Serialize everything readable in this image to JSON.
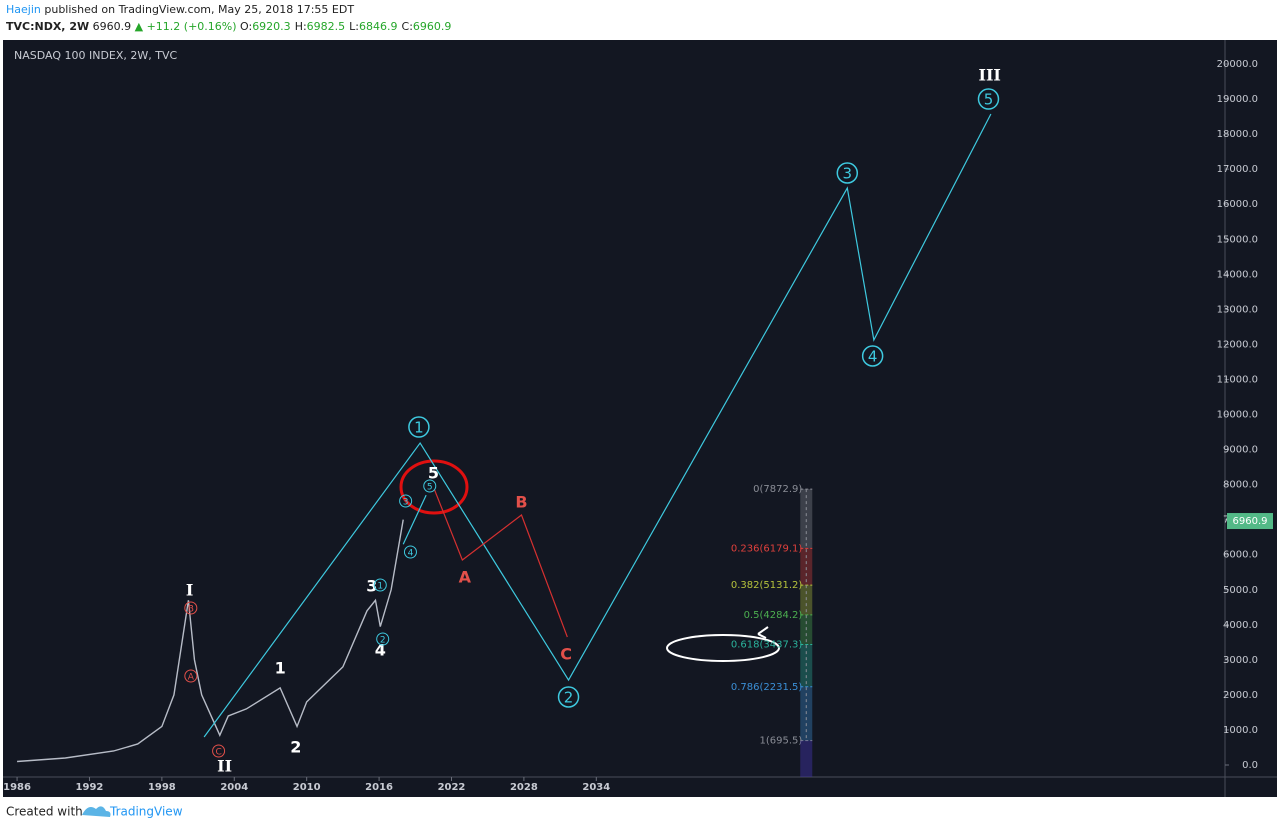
{
  "header": {
    "author": "Haejin",
    "published": "published on TradingView.com, May 25, 2018 17:55 EDT",
    "symbol": "TVC:NDX, 2W",
    "price": "6960.9",
    "change": "▲ +11.2 (+0.16%)",
    "ohlc": [
      {
        "label": "O:",
        "value": "6920.3"
      },
      {
        "label": "H:",
        "value": "6982.5"
      },
      {
        "label": "L:",
        "value": "6846.9"
      },
      {
        "label": "C:",
        "value": "6960.9"
      }
    ]
  },
  "footer": {
    "text": "Created with",
    "brand": "TradingView"
  },
  "chart_data": {
    "type": "line",
    "title": "NASDAQ 100 INDEX, 2W, TVC",
    "xlim": [
      1985,
      2086.1
    ],
    "xticks": [
      1986,
      1992,
      1998,
      2004,
      2010,
      2016,
      2022,
      2028,
      2034
    ],
    "ylim": [
      -342,
      20628
    ],
    "yticks": [
      {
        "value": 0,
        "label": "0.0"
      },
      {
        "value": 1000,
        "label": "1000.0"
      },
      {
        "value": 2000,
        "label": "2000.0"
      },
      {
        "value": 3000,
        "label": "3000.0"
      },
      {
        "value": 4000,
        "label": "4000.0"
      },
      {
        "value": 5000,
        "label": "5000.0"
      },
      {
        "value": 6000,
        "label": "6000.0"
      },
      {
        "value": 7000,
        "label": "7000.0"
      },
      {
        "value": 8000,
        "label": "8000.0"
      },
      {
        "value": 9000,
        "label": "9000.0"
      },
      {
        "value": 10000,
        "label": "10000.0"
      },
      {
        "value": 11000,
        "label": "11000.0"
      },
      {
        "value": 12000,
        "label": "12000.0"
      },
      {
        "value": 13000,
        "label": "13000.0"
      },
      {
        "value": 14000,
        "label": "14000.0"
      },
      {
        "value": 15000,
        "label": "15000.0"
      },
      {
        "value": 16000,
        "label": "16000.0"
      },
      {
        "value": 17000,
        "label": "17000.0"
      },
      {
        "value": 18000,
        "label": "18000.0"
      },
      {
        "value": 19000,
        "label": "19000.0"
      },
      {
        "value": 20000,
        "label": "20000.0"
      }
    ],
    "grid": false,
    "x": [
      1986,
      1990,
      1994,
      1996,
      1998,
      1999,
      2000.2,
      2000.7,
      2001.3,
      2002.8,
      2003.5,
      2005,
      2007.8,
      2009.2,
      2010,
      2011.5,
      2013,
      2015,
      2015.7,
      2016.1,
      2017,
      2018
    ],
    "series": [
      {
        "color": "#b7bcc7",
        "values": [
          100,
          200,
          400,
          600,
          1100,
          2000,
          4700,
          3000,
          2000,
          850,
          1400,
          1600,
          2200,
          1100,
          1800,
          2300,
          2800,
          4400,
          4700,
          3950,
          5000,
          7000
        ]
      }
    ],
    "last_price": 6960.9,
    "last_price_color": "#53b987",
    "wave_lines": [
      {
        "color": "#3ec9df",
        "x": [
          2001.5,
          2019.4,
          2031.7,
          2054.8,
          2057,
          2066.7
        ],
        "values": [
          800,
          9187,
          2425,
          16462,
          12126,
          18573
        ]
      },
      {
        "color": "#3ec9df",
        "x": [
          2018,
          2019.9
        ],
        "values": [
          6300,
          7700
        ]
      },
      {
        "color": "#d43030",
        "x": [
          2020.6,
          2022.9,
          2027.8,
          2031.6
        ],
        "values": [
          7846,
          5849,
          7133,
          3652
        ]
      }
    ],
    "fib": {
      "x": 2051.4,
      "levels": [
        {
          "value": 7872.9,
          "label": "0(7872.9)",
          "color": "#8a8d96"
        },
        {
          "value": 6179.1,
          "label": "0.236(6179.1)",
          "color": "#e0403c"
        },
        {
          "value": 5131.2,
          "label": "0.382(5131.2)",
          "color": "#b5c23c"
        },
        {
          "value": 4284.2,
          "label": "0.5(4284.2)",
          "color": "#4caf50"
        },
        {
          "value": 3437.3,
          "label": "0.618(3437.3)",
          "color": "#2bb39c"
        },
        {
          "value": 2231.5,
          "label": "0.786(2231.5)",
          "color": "#3b8fd6"
        },
        {
          "value": 695.5,
          "label": "1(695.5)",
          "color": "#8a8d96"
        }
      ]
    },
    "annotations": [
      {
        "text": "I",
        "x": 2000.3,
        "y": 4993,
        "color": "#ffffff",
        "style": "roman"
      },
      {
        "text": "II",
        "x": 2003.2,
        "y": -30,
        "color": "#ffffff",
        "style": "roman"
      },
      {
        "text": "III",
        "x": 2066.6,
        "y": 19686,
        "color": "#ffffff",
        "style": "roman"
      },
      {
        "text": "1",
        "x": 2007.8,
        "y": 2767,
        "color": "#ffffff",
        "style": "plain"
      },
      {
        "text": "2",
        "x": 2009.1,
        "y": 514,
        "color": "#ffffff",
        "style": "plain"
      },
      {
        "text": "3",
        "x": 2015.4,
        "y": 5107,
        "color": "#ffffff",
        "style": "plain"
      },
      {
        "text": "4",
        "x": 2016.1,
        "y": 3281,
        "color": "#ffffff",
        "style": "plain"
      },
      {
        "text": "5",
        "x": 2020.5,
        "y": 8331,
        "color": "#ffffff",
        "style": "plain"
      },
      {
        "text": "A",
        "x": 2023.1,
        "y": 5364,
        "color": "#e2504a",
        "style": "plain"
      },
      {
        "text": "B",
        "x": 2027.8,
        "y": 7504,
        "color": "#e2504a",
        "style": "plain"
      },
      {
        "text": "C",
        "x": 2031.5,
        "y": 3167,
        "color": "#e2504a",
        "style": "plain"
      },
      {
        "text": "1",
        "x": 2019.3,
        "y": 9643,
        "color": "#3ec9df",
        "style": "circle"
      },
      {
        "text": "2",
        "x": 2031.7,
        "y": 1940,
        "color": "#3ec9df",
        "style": "circle"
      },
      {
        "text": "3",
        "x": 2054.8,
        "y": 16890,
        "color": "#3ec9df",
        "style": "circle"
      },
      {
        "text": "4",
        "x": 2056.9,
        "y": 11669,
        "color": "#3ec9df",
        "style": "circle"
      },
      {
        "text": "5",
        "x": 2066.5,
        "y": 19001,
        "color": "#3ec9df",
        "style": "circle"
      },
      {
        "text": "3",
        "x": 2018.2,
        "y": 7532,
        "color": "#3ec9df",
        "style": "small"
      },
      {
        "text": "5",
        "x": 2020.2,
        "y": 7960,
        "color": "#3ec9df",
        "style": "small"
      },
      {
        "text": "4",
        "x": 2018.6,
        "y": 6077,
        "color": "#3ec9df",
        "style": "small"
      },
      {
        "text": "1",
        "x": 2016.1,
        "y": 5136,
        "color": "#3ec9df",
        "style": "small"
      },
      {
        "text": "2",
        "x": 2016.3,
        "y": 3595,
        "color": "#3ec9df",
        "style": "small"
      },
      {
        "text": "B",
        "x": 2000.4,
        "y": 4479,
        "color": "#e2504a",
        "style": "small"
      },
      {
        "text": "A",
        "x": 2000.4,
        "y": 2539,
        "color": "#e2504a",
        "style": "small"
      },
      {
        "text": "C",
        "x": 2002.7,
        "y": 399,
        "color": "#e2504a",
        "style": "small"
      }
    ]
  }
}
